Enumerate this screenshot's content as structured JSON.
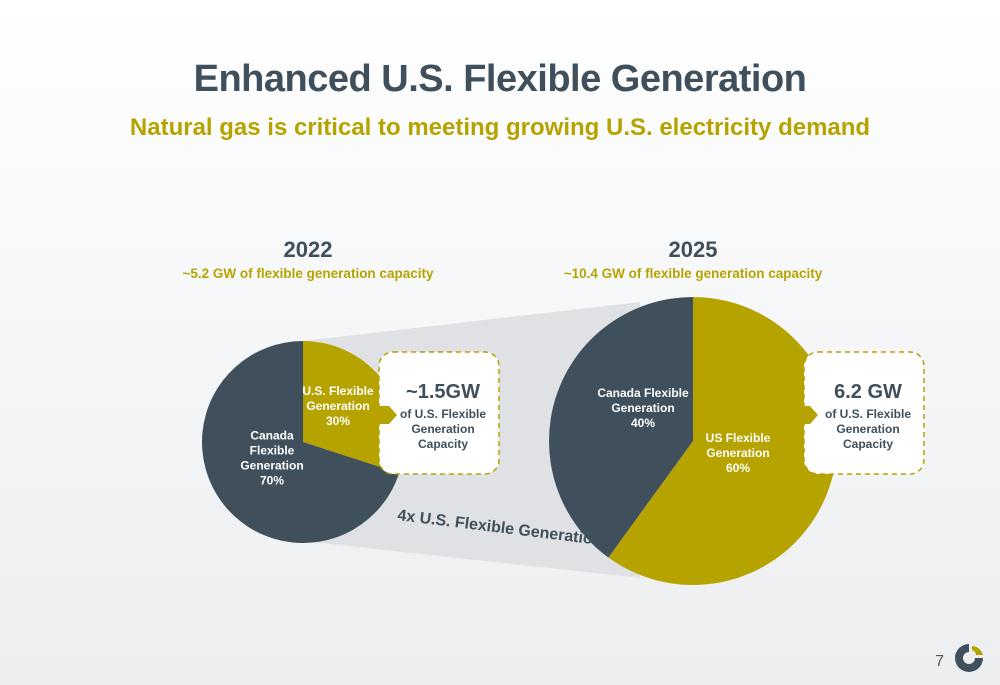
{
  "title": "Enhanced U.S. Flexible Generation",
  "subtitle": "Natural gas is critical to meeting growing U.S. electricity demand",
  "page_number": "7",
  "comparison_label": "4x U.S. Flexible Generation",
  "colors": {
    "canada": "#3f4f5c",
    "us": "#b6a300",
    "band": "#dfe1e4"
  },
  "chart_data": [
    {
      "type": "pie",
      "title": "2022",
      "subtitle": "~5.2 GW of flexible generation capacity",
      "slices": [
        {
          "lines": [
            "U.S. Flexible",
            "Generation",
            "30%"
          ],
          "value": 30,
          "color": "#b6a300"
        },
        {
          "lines": [
            "Canada",
            "Flexible",
            "Generation",
            "70%"
          ],
          "value": 70,
          "color": "#3f4f5c"
        }
      ],
      "callout": {
        "value": "~1.5GW",
        "lines": [
          "of U.S. Flexible",
          "Generation",
          "Capacity"
        ]
      }
    },
    {
      "type": "pie",
      "title": "2025",
      "subtitle": "~10.4 GW of flexible generation capacity",
      "slices": [
        {
          "lines": [
            "US Flexible",
            "Generation",
            "60%"
          ],
          "value": 60,
          "color": "#b6a300"
        },
        {
          "lines": [
            "Canada Flexible",
            "Generation",
            "40%"
          ],
          "value": 40,
          "color": "#3f4f5c"
        }
      ],
      "callout": {
        "value": "6.2 GW",
        "lines": [
          "of U.S. Flexible",
          "Generation",
          "Capacity"
        ]
      }
    }
  ]
}
